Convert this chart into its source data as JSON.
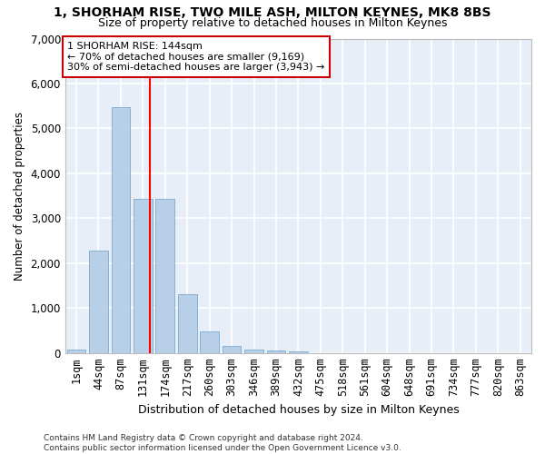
{
  "title": "1, SHORHAM RISE, TWO MILE ASH, MILTON KEYNES, MK8 8BS",
  "subtitle": "Size of property relative to detached houses in Milton Keynes",
  "xlabel": "Distribution of detached houses by size in Milton Keynes",
  "ylabel": "Number of detached properties",
  "bar_color": "#b8cfe8",
  "bar_edge_color": "#7aaad0",
  "background_color": "#e8eef8",
  "grid_color": "#ffffff",
  "categories": [
    "1sqm",
    "44sqm",
    "87sqm",
    "131sqm",
    "174sqm",
    "217sqm",
    "260sqm",
    "303sqm",
    "346sqm",
    "389sqm",
    "432sqm",
    "475sqm",
    "518sqm",
    "561sqm",
    "604sqm",
    "648sqm",
    "691sqm",
    "734sqm",
    "777sqm",
    "820sqm",
    "863sqm"
  ],
  "values": [
    75,
    2280,
    5480,
    3430,
    3430,
    1310,
    470,
    160,
    80,
    55,
    30,
    0,
    0,
    0,
    0,
    0,
    0,
    0,
    0,
    0,
    0
  ],
  "ylim": [
    0,
    7000
  ],
  "yticks": [
    0,
    1000,
    2000,
    3000,
    4000,
    5000,
    6000,
    7000
  ],
  "red_line_x": 3.32,
  "annotation_text": "1 SHORHAM RISE: 144sqm\n← 70% of detached houses are smaller (9,169)\n30% of semi-detached houses are larger (3,943) →",
  "annotation_box_color": "#ffffff",
  "annotation_border_color": "#cc0000",
  "footer_line1": "Contains HM Land Registry data © Crown copyright and database right 2024.",
  "footer_line2": "Contains public sector information licensed under the Open Government Licence v3.0."
}
